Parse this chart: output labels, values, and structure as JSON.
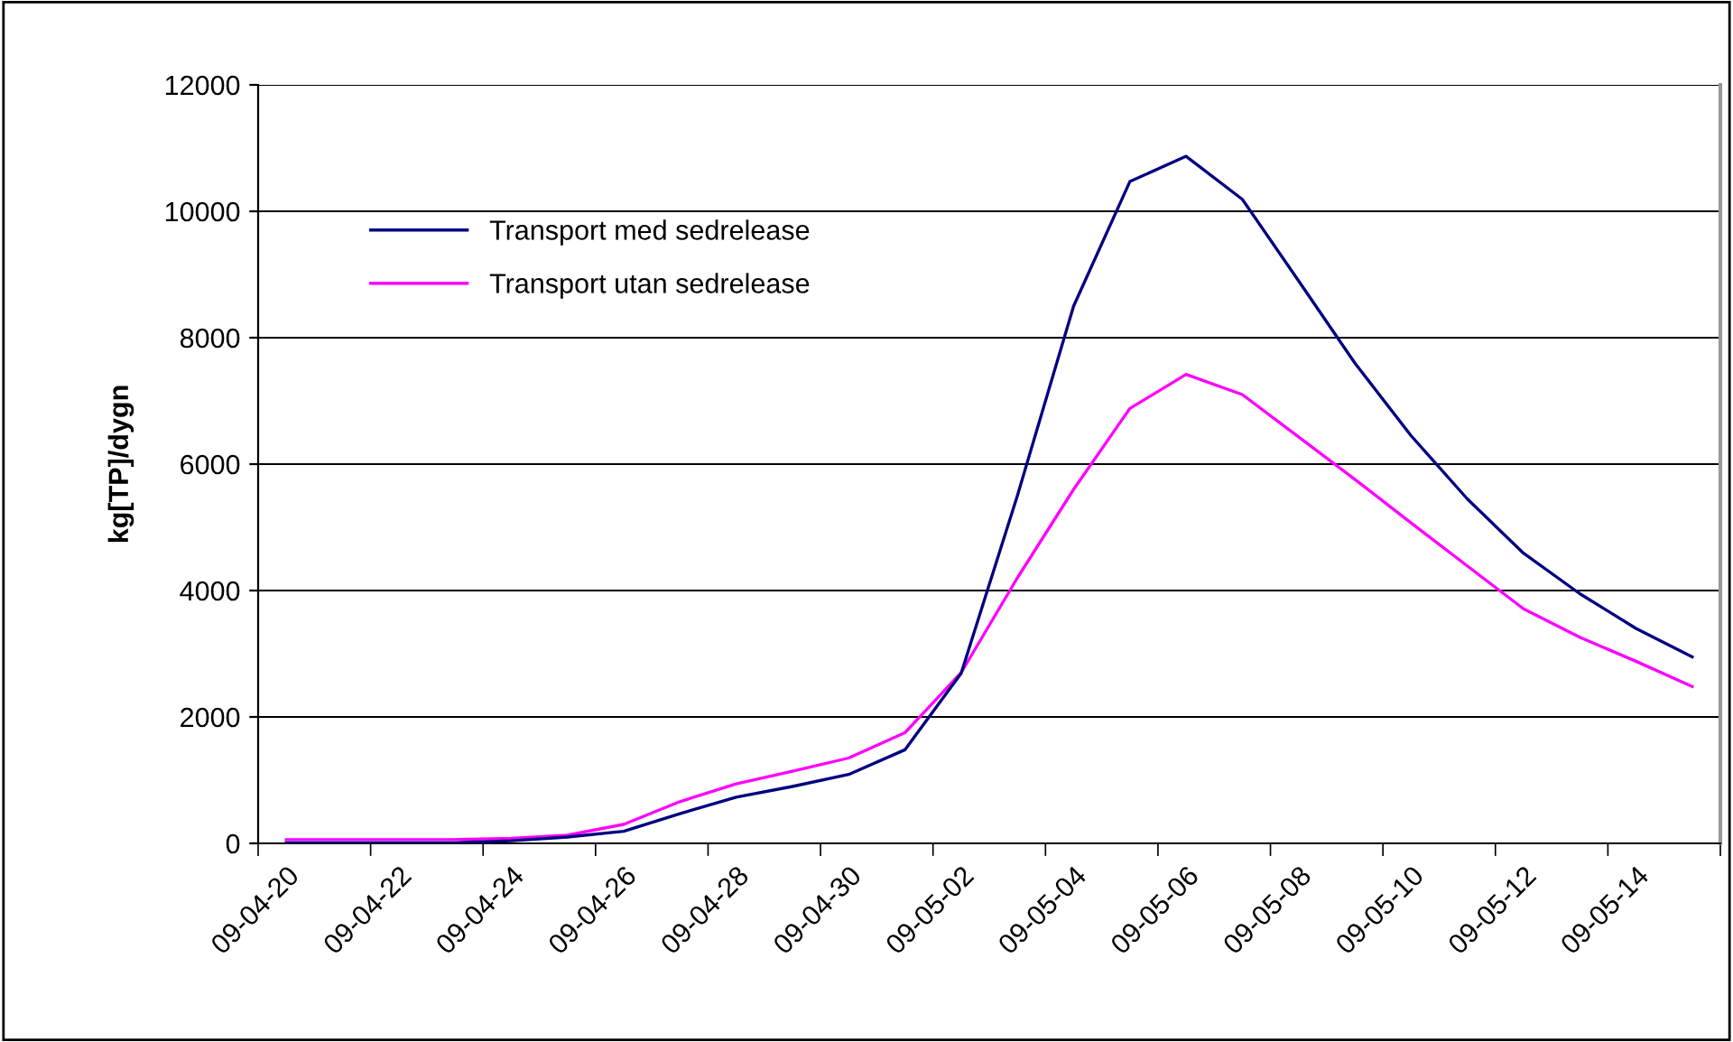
{
  "chart_data": {
    "type": "line",
    "ylabel": "kg[TP]/dygn",
    "categories": [
      "09-04-20",
      null,
      "09-04-22",
      null,
      "09-04-24",
      null,
      "09-04-26",
      null,
      "09-04-28",
      null,
      "09-04-30",
      null,
      "09-05-02",
      null,
      "09-05-04",
      null,
      "09-05-06",
      null,
      "09-05-08",
      null,
      "09-05-10",
      null,
      "09-05-12",
      null,
      "09-05-14",
      null
    ],
    "series": [
      {
        "name": "Transport med sedrelease",
        "color": "#000080",
        "values": [
          10,
          10,
          10,
          10,
          40,
          100,
          190,
          470,
          730,
          900,
          1090,
          1480,
          2690,
          5500,
          8500,
          10470,
          10870,
          10190,
          8900,
          7600,
          6450,
          5450,
          4590,
          3950,
          3400,
          2950
        ]
      },
      {
        "name": "Transport utan sedrelease",
        "color": "#ff00ff",
        "values": [
          60,
          60,
          60,
          60,
          80,
          130,
          300,
          660,
          940,
          1140,
          1350,
          1750,
          2700,
          4200,
          5600,
          6880,
          7420,
          7100,
          6430,
          5760,
          5070,
          4390,
          3710,
          3260,
          2880,
          2480
        ]
      }
    ],
    "ylim": [
      0,
      12000
    ],
    "yticks": [
      0,
      2000,
      4000,
      6000,
      8000,
      10000,
      12000
    ],
    "grid": "y",
    "legend": "top left",
    "marker": "none",
    "line_style": "solid"
  }
}
